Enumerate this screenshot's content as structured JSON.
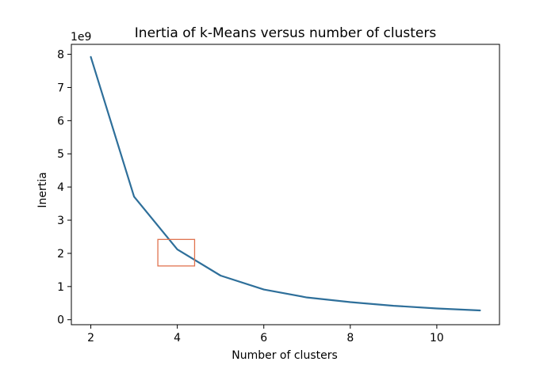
{
  "chart_data": {
    "type": "line",
    "title": "Inertia of k-Means versus number of clusters",
    "xlabel": "Number of clusters",
    "ylabel": "Inertia",
    "y_offset_label": "1e9",
    "xlim": [
      1.55,
      11.45
    ],
    "ylim": [
      -0.15,
      8.3
    ],
    "x_ticks": [
      2,
      4,
      6,
      8,
      10
    ],
    "y_ticks": [
      0,
      1,
      2,
      3,
      4,
      5,
      6,
      7,
      8
    ],
    "grid": false,
    "series": [
      {
        "color": "#2e6f9a",
        "x": [
          2,
          3,
          4,
          5,
          6,
          7,
          8,
          9,
          10,
          11
        ],
        "y": [
          7.92,
          3.71,
          2.12,
          1.33,
          0.91,
          0.67,
          0.53,
          0.42,
          0.34,
          0.28
        ]
      }
    ],
    "highlight_box": {
      "x_range": [
        3.55,
        4.4
      ],
      "y_range": [
        1.62,
        2.42
      ],
      "color": "#e0734f"
    }
  }
}
